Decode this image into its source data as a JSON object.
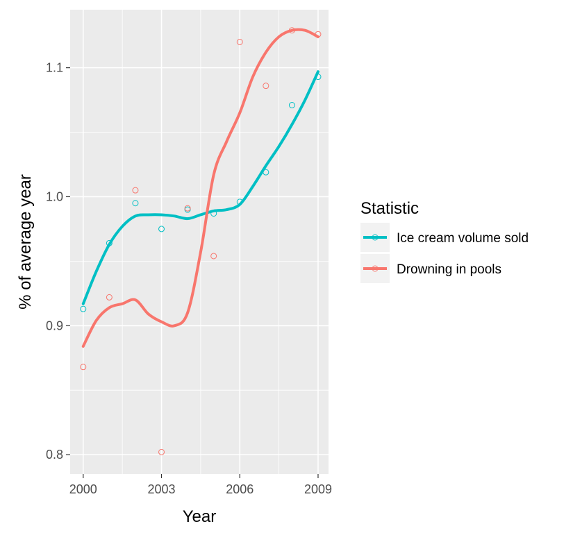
{
  "chart_data": {
    "type": "scatter",
    "xlabel": "Year",
    "ylabel": "% of average year",
    "xlim": [
      1999.5,
      2009.4
    ],
    "ylim": [
      0.785,
      1.145
    ],
    "x_ticks": [
      2000,
      2003,
      2006,
      2009
    ],
    "x_tick_labels": [
      "2000",
      "2003",
      "2006",
      "2009"
    ],
    "y_ticks": [
      0.8,
      0.9,
      1.0,
      1.1
    ],
    "y_tick_labels": [
      "0.8",
      "0.9",
      "1.0",
      "1.1"
    ],
    "grid": true,
    "background": "#ebebeb",
    "legend": {
      "title": "Statistic",
      "position": "right"
    },
    "series": [
      {
        "name": "Ice cream volume sold",
        "color": "#00bfc4",
        "points": [
          [
            2000,
            0.913
          ],
          [
            2001,
            0.964
          ],
          [
            2002,
            0.995
          ],
          [
            2003,
            0.975
          ],
          [
            2004,
            0.99
          ],
          [
            2005,
            0.987
          ],
          [
            2006,
            0.996
          ],
          [
            2007,
            1.019
          ],
          [
            2008,
            1.071
          ],
          [
            2009,
            1.093
          ]
        ],
        "smooth": [
          [
            2000,
            0.917
          ],
          [
            2000.5,
            0.942
          ],
          [
            2001,
            0.963
          ],
          [
            2001.5,
            0.977
          ],
          [
            2002,
            0.985
          ],
          [
            2002.5,
            0.986
          ],
          [
            2003,
            0.986
          ],
          [
            2003.5,
            0.985
          ],
          [
            2004,
            0.983
          ],
          [
            2004.5,
            0.986
          ],
          [
            2005,
            0.989
          ],
          [
            2005.5,
            0.99
          ],
          [
            2006,
            0.994
          ],
          [
            2006.5,
            1.008
          ],
          [
            2007,
            1.024
          ],
          [
            2007.5,
            1.039
          ],
          [
            2008,
            1.056
          ],
          [
            2008.5,
            1.075
          ],
          [
            2009,
            1.097
          ]
        ]
      },
      {
        "name": "Drowning in pools",
        "color": "#f8766d",
        "points": [
          [
            2000,
            0.868
          ],
          [
            2001,
            0.922
          ],
          [
            2002,
            1.005
          ],
          [
            2003,
            0.802
          ],
          [
            2004,
            0.991
          ],
          [
            2005,
            0.954
          ],
          [
            2006,
            1.12
          ],
          [
            2007,
            1.086
          ],
          [
            2008,
            1.129
          ],
          [
            2009,
            1.126
          ]
        ],
        "smooth": [
          [
            2000,
            0.884
          ],
          [
            2000.5,
            0.904
          ],
          [
            2001,
            0.914
          ],
          [
            2001.5,
            0.917
          ],
          [
            2002,
            0.92
          ],
          [
            2002.5,
            0.909
          ],
          [
            2003,
            0.903
          ],
          [
            2003.5,
            0.9
          ],
          [
            2004,
            0.91
          ],
          [
            2004.5,
            0.957
          ],
          [
            2005,
            1.017
          ],
          [
            2005.5,
            1.043
          ],
          [
            2006,
            1.065
          ],
          [
            2006.5,
            1.093
          ],
          [
            2007,
            1.112
          ],
          [
            2007.5,
            1.124
          ],
          [
            2008,
            1.129
          ],
          [
            2008.5,
            1.129
          ],
          [
            2009,
            1.124
          ]
        ]
      }
    ]
  }
}
